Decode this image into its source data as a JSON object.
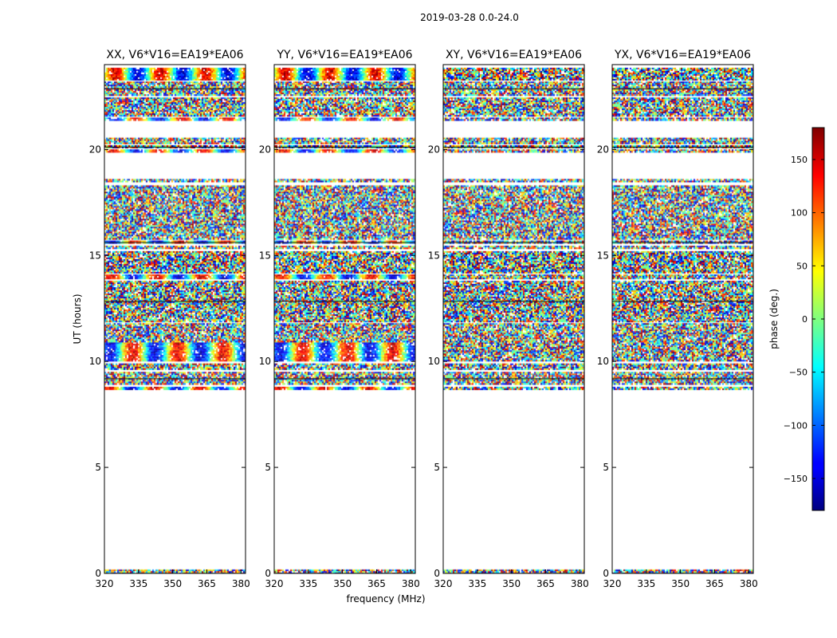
{
  "figure": {
    "suptitle": "2019-03-28 0.0-24.0",
    "xlabel": "frequency (MHz)",
    "ylabel": "UT (hours)"
  },
  "chart_data": {
    "type": "heatmap",
    "title": "2019-03-28 0.0-24.0",
    "xlabel": "frequency (MHz)",
    "ylabel": "UT (hours)",
    "xlim": [
      320,
      382
    ],
    "ylim": [
      0,
      24
    ],
    "xticks": [
      "320",
      "335",
      "350",
      "365",
      "380"
    ],
    "xtick_values": [
      320,
      335,
      350,
      365,
      380
    ],
    "yticks": [
      "0",
      "5",
      "10",
      "15",
      "20"
    ],
    "ytick_values": [
      0,
      5,
      10,
      15,
      20
    ],
    "panels": [
      {
        "name": "xx",
        "title": "XX, V6*V16=EA19*EA06",
        "coherent_bands": true
      },
      {
        "name": "yy",
        "title": "YY, V6*V16=EA19*EA06",
        "coherent_bands": true
      },
      {
        "name": "xy",
        "title": "XY, V6*V16=EA19*EA06",
        "coherent_bands": false
      },
      {
        "name": "yx",
        "title": "YX, V6*V16=EA19*EA06",
        "coherent_bands": false
      }
    ],
    "data_bands_ut": [
      [
        0.0,
        0.18
      ],
      [
        8.7,
        8.8
      ],
      [
        8.9,
        9.5
      ],
      [
        9.6,
        9.9
      ],
      [
        10.0,
        10.9
      ],
      [
        10.95,
        11.8
      ],
      [
        11.9,
        13.8
      ],
      [
        13.9,
        14.1
      ],
      [
        14.2,
        15.2
      ],
      [
        15.3,
        15.45
      ],
      [
        15.55,
        15.7
      ],
      [
        15.75,
        18.3
      ],
      [
        18.45,
        18.6
      ],
      [
        19.9,
        20.0
      ],
      [
        20.05,
        20.2
      ],
      [
        20.25,
        20.55
      ],
      [
        21.4,
        21.5
      ],
      [
        21.55,
        22.45
      ],
      [
        22.55,
        23.2
      ],
      [
        23.25,
        23.85
      ]
    ],
    "colorbar": {
      "label": "phase (deg.)",
      "range": [
        -180,
        180
      ],
      "ticks": [
        "150",
        "100",
        "50",
        "0",
        "−50",
        "−100",
        "−150"
      ],
      "tick_values": [
        150,
        100,
        50,
        0,
        -50,
        -100,
        -150
      ],
      "colormap": "jet"
    }
  }
}
